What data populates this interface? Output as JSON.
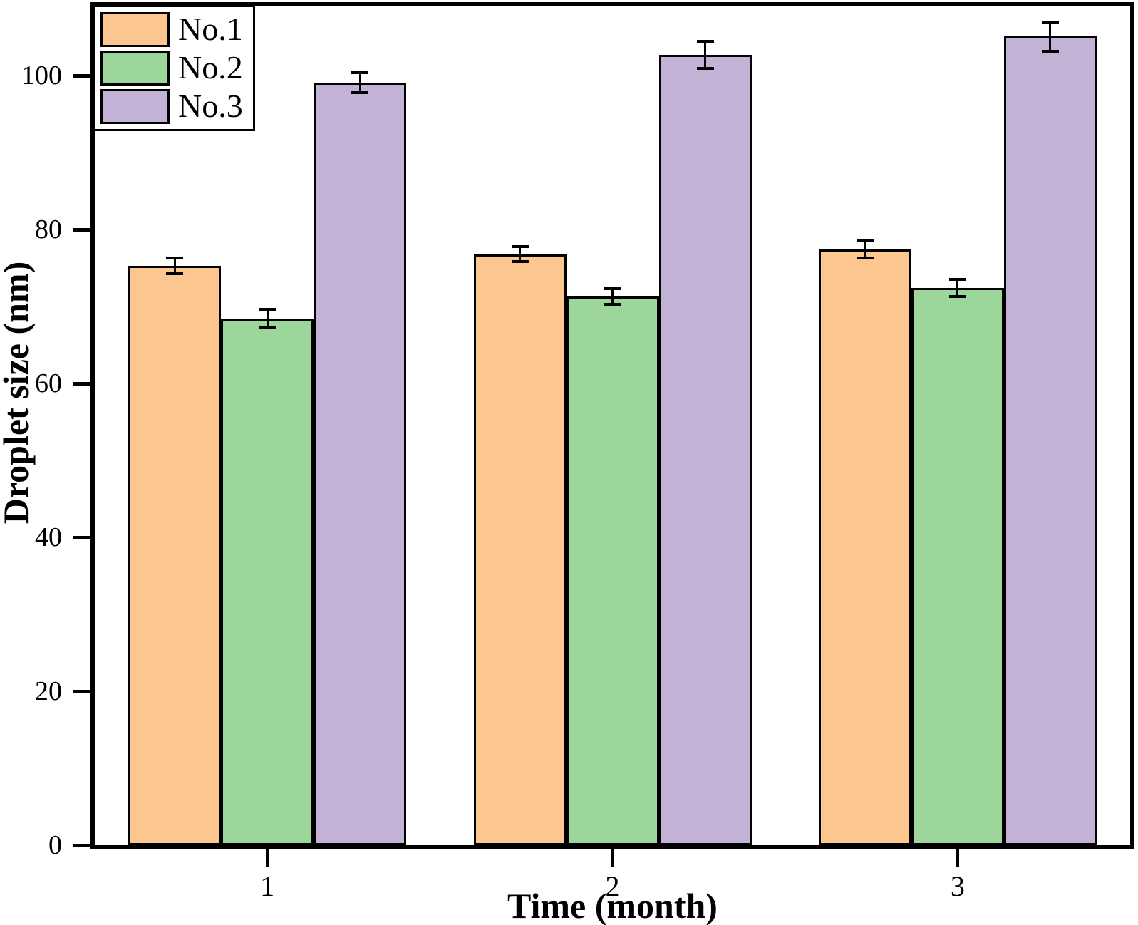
{
  "chart_data": {
    "type": "bar",
    "title": "",
    "xlabel": "Time (month)",
    "ylabel": "Droplet size (nm)",
    "categories": [
      "1",
      "2",
      "3"
    ],
    "series": [
      {
        "name": "No.1",
        "color": "#FBC690",
        "values": [
          75.3,
          76.8,
          77.4
        ],
        "errors": [
          1.0,
          1.0,
          1.1
        ]
      },
      {
        "name": "No.2",
        "color": "#9CD69B",
        "values": [
          68.4,
          71.3,
          72.4
        ],
        "errors": [
          1.2,
          1.0,
          1.1
        ]
      },
      {
        "name": "No.3",
        "color": "#C2B3D6",
        "values": [
          99.1,
          102.7,
          105.1
        ],
        "errors": [
          1.3,
          1.8,
          1.9
        ]
      }
    ],
    "yticks": [
      0,
      20,
      40,
      60,
      80,
      100
    ],
    "ylim": [
      0,
      109
    ],
    "grid": false,
    "legend_position": "top-left",
    "error_bars": true,
    "bar_outline_color": "#000000",
    "frame_color": "#000000"
  }
}
